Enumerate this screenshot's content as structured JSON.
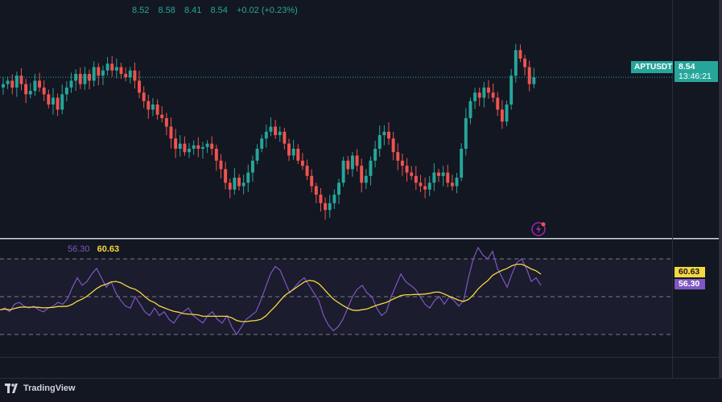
{
  "header": {
    "open": "8.52",
    "high": "8.58",
    "low": "8.41",
    "close": "8.54",
    "change": "+0.02 (+0.23%)"
  },
  "price_axis": {
    "symbol": "APTUSDT",
    "last_price": "8.54",
    "countdown": "13:46:21"
  },
  "rsi_panel": {
    "rsi_value": "56.30",
    "ma_value": "60.63"
  },
  "footer": {
    "brand": "TradingView"
  },
  "icons": {
    "alert": "lightning-icon",
    "logo": "tradingview-logo-icon"
  },
  "colors": {
    "up": "#26a69a",
    "down": "#ef5350",
    "rsi": "#7e57c2",
    "rsi_ma": "#f7d73f",
    "background": "#131722"
  },
  "chart_data": [
    {
      "type": "candlestick",
      "last_price": 8.54,
      "ylim": [
        7.6,
        8.9
      ],
      "closes": [
        8.5,
        8.52,
        8.48,
        8.55,
        8.5,
        8.44,
        8.46,
        8.52,
        8.48,
        8.44,
        8.38,
        8.42,
        8.35,
        8.44,
        8.48,
        8.52,
        8.56,
        8.5,
        8.56,
        8.52,
        8.6,
        8.55,
        8.58,
        8.62,
        8.58,
        8.6,
        8.56,
        8.54,
        8.58,
        8.52,
        8.45,
        8.4,
        8.35,
        8.38,
        8.32,
        8.3,
        8.25,
        8.18,
        8.12,
        8.15,
        8.1,
        8.12,
        8.14,
        8.12,
        8.13,
        8.15,
        8.12,
        8.05,
        8.0,
        7.92,
        7.88,
        7.95,
        7.9,
        7.92,
        7.98,
        8.05,
        8.12,
        8.18,
        8.22,
        8.25,
        8.2,
        8.22,
        8.15,
        8.08,
        8.12,
        8.05,
        8.02,
        7.96,
        7.9,
        7.85,
        7.8,
        7.76,
        7.8,
        7.85,
        7.92,
        8.05,
        8.0,
        8.08,
        8.02,
        7.92,
        7.96,
        8.05,
        8.12,
        8.2,
        8.22,
        8.18,
        8.1,
        8.05,
        8.02,
        7.98,
        7.96,
        7.92,
        7.9,
        7.88,
        7.92,
        7.98,
        7.96,
        7.98,
        7.92,
        7.9,
        7.95,
        8.12,
        8.3,
        8.4,
        8.45,
        8.42,
        8.48,
        8.45,
        8.42,
        8.35,
        8.28,
        8.38,
        8.55,
        8.7,
        8.65,
        8.6,
        8.5,
        8.54
      ],
      "rsi": [
        43,
        44,
        42,
        46,
        47,
        45,
        44,
        45,
        43,
        42,
        44,
        45,
        47,
        46,
        49,
        55,
        60,
        56,
        58,
        62,
        65,
        60,
        55,
        58,
        52,
        48,
        45,
        44,
        50,
        46,
        42,
        40,
        44,
        40,
        42,
        38,
        36,
        40,
        42,
        44,
        40,
        38,
        36,
        40,
        42,
        38,
        36,
        40,
        34,
        30,
        34,
        38,
        40,
        42,
        48,
        55,
        62,
        66,
        64,
        58,
        52,
        55,
        58,
        60,
        56,
        52,
        48,
        40,
        35,
        32,
        34,
        38,
        44,
        50,
        54,
        56,
        52,
        50,
        44,
        40,
        42,
        50,
        56,
        62,
        58,
        56,
        54,
        50,
        46,
        44,
        48,
        50,
        46,
        50,
        48,
        45,
        48,
        60,
        70,
        76,
        72,
        70,
        74,
        65,
        60,
        55,
        62,
        68,
        70,
        65,
        58,
        60,
        56
      ]
    }
  ]
}
